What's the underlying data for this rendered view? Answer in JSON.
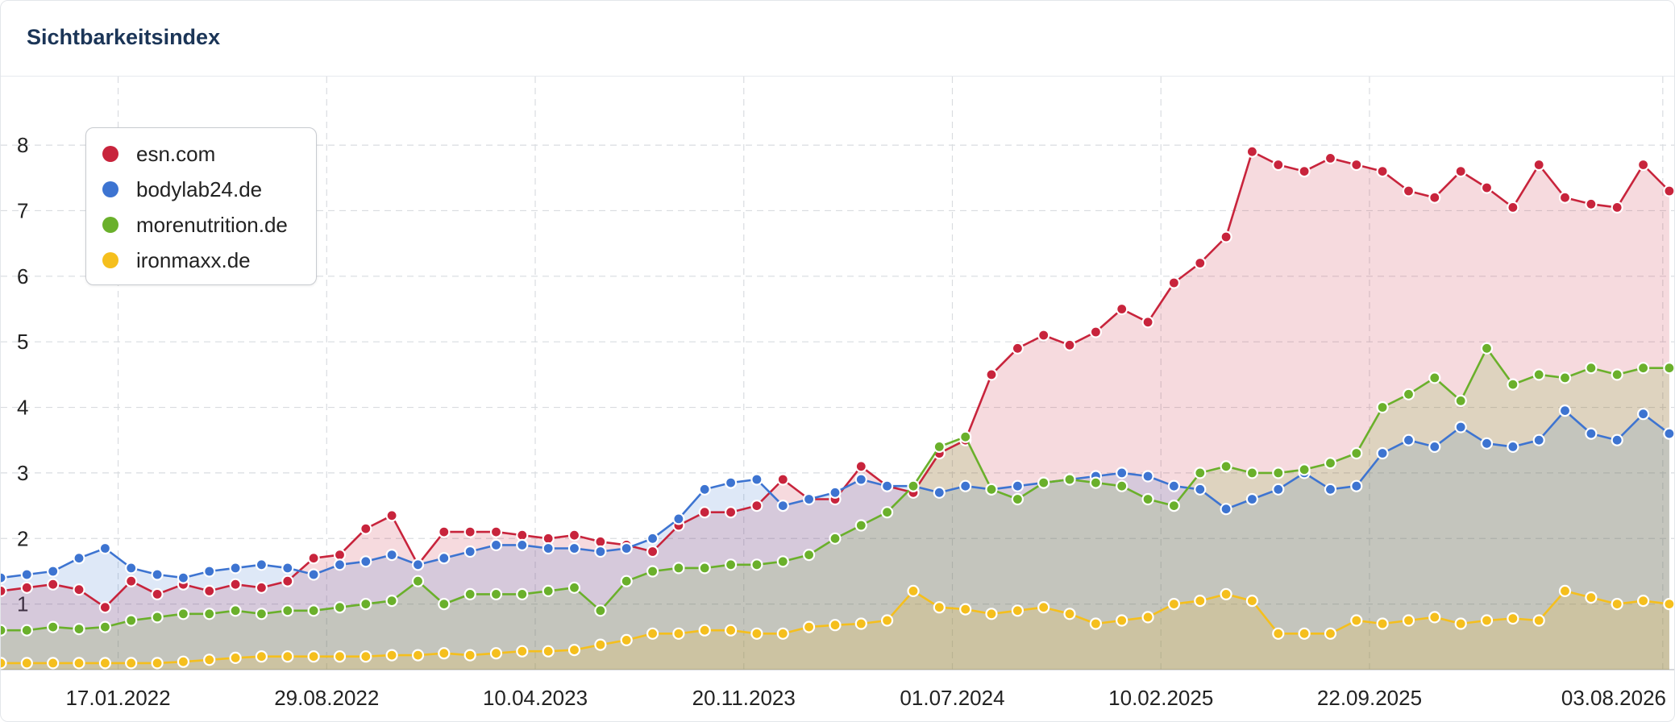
{
  "header": {
    "title": "Sichtbarkeitsindex"
  },
  "colors": {
    "esn": "#c8243c",
    "bodylab": "#3d74d1",
    "morenutrition": "#6ab02b",
    "ironmaxx": "#f5bf1d"
  },
  "chart_data": {
    "type": "area",
    "title": "Sichtbarkeitsindex",
    "xlabel": "",
    "ylabel": "",
    "x_tick_labels": [
      "17.01.2022",
      "29.08.2022",
      "10.04.2023",
      "20.11.2023",
      "01.07.2024",
      "10.02.2025",
      "22.09.2025",
      "03.08.2026"
    ],
    "x_range": [
      "2021-09-13",
      "2026-08-17"
    ],
    "y_ticks": [
      1,
      2,
      3,
      4,
      5,
      6,
      7,
      8
    ],
    "ylim": [
      0,
      8.8
    ],
    "grid": true,
    "legend_placement": "top-left",
    "x": [
      "2021-09-13",
      "2021-10-11",
      "2021-11-08",
      "2021-12-06",
      "2022-01-03",
      "2022-01-31",
      "2022-02-28",
      "2022-03-28",
      "2022-04-25",
      "2022-05-23",
      "2022-06-20",
      "2022-07-18",
      "2022-08-15",
      "2022-09-12",
      "2022-10-10",
      "2022-11-07",
      "2022-12-05",
      "2023-01-02",
      "2023-01-30",
      "2023-02-27",
      "2023-03-27",
      "2023-04-24",
      "2023-05-22",
      "2023-06-19",
      "2023-07-17",
      "2023-08-14",
      "2023-09-11",
      "2023-10-09",
      "2023-11-06",
      "2023-12-04",
      "2024-01-01",
      "2024-01-29",
      "2024-02-26",
      "2024-03-25",
      "2024-04-22",
      "2024-05-20",
      "2024-06-17",
      "2024-07-15",
      "2024-08-12",
      "2024-09-09",
      "2024-10-07",
      "2024-11-04",
      "2024-12-02",
      "2024-12-30",
      "2025-01-27",
      "2025-02-24",
      "2025-03-24",
      "2025-04-21",
      "2025-05-19",
      "2025-06-16",
      "2025-07-14",
      "2025-08-11",
      "2025-09-08",
      "2025-10-06",
      "2025-11-03",
      "2025-12-01",
      "2025-12-29",
      "2026-01-26",
      "2026-02-23",
      "2026-03-23",
      "2026-04-20",
      "2026-05-18",
      "2026-06-15",
      "2026-07-13",
      "2026-08-10"
    ],
    "series": [
      {
        "name": "esn.com",
        "color": "#c8243c",
        "values": [
          1.2,
          1.25,
          1.3,
          1.22,
          0.95,
          1.35,
          1.15,
          1.3,
          1.2,
          1.3,
          1.25,
          1.35,
          1.7,
          1.75,
          2.15,
          2.35,
          1.6,
          2.1,
          2.1,
          2.1,
          2.05,
          2.0,
          2.05,
          1.95,
          1.9,
          1.8,
          2.2,
          2.4,
          2.4,
          2.5,
          2.9,
          2.6,
          2.6,
          3.1,
          2.8,
          2.7,
          3.3,
          3.5,
          4.5,
          4.9,
          5.1,
          4.95,
          5.15,
          5.5,
          5.3,
          5.9,
          6.2,
          6.6,
          7.9,
          7.7,
          7.6,
          7.8,
          7.7,
          7.6,
          7.3,
          7.2,
          7.6,
          7.35,
          7.05,
          7.7,
          7.2,
          7.1,
          7.05,
          7.7,
          7.3
        ]
      },
      {
        "name": "bodylab24.de",
        "color": "#3d74d1",
        "values": [
          1.4,
          1.45,
          1.5,
          1.7,
          1.85,
          1.55,
          1.45,
          1.4,
          1.5,
          1.55,
          1.6,
          1.55,
          1.45,
          1.6,
          1.65,
          1.75,
          1.6,
          1.7,
          1.8,
          1.9,
          1.9,
          1.85,
          1.85,
          1.8,
          1.85,
          2.0,
          2.3,
          2.75,
          2.85,
          2.9,
          2.5,
          2.6,
          2.7,
          2.9,
          2.8,
          2.8,
          2.7,
          2.8,
          2.75,
          2.8,
          2.85,
          2.9,
          2.95,
          3.0,
          2.95,
          2.8,
          2.75,
          2.45,
          2.6,
          2.75,
          3.0,
          2.75,
          2.8,
          3.3,
          3.5,
          3.4,
          3.7,
          3.45,
          3.4,
          3.5,
          3.95,
          3.6,
          3.5,
          3.9,
          3.6
        ]
      },
      {
        "name": "morenutrition.de",
        "color": "#6ab02b",
        "values": [
          0.6,
          0.6,
          0.65,
          0.62,
          0.65,
          0.75,
          0.8,
          0.85,
          0.85,
          0.9,
          0.85,
          0.9,
          0.9,
          0.95,
          1.0,
          1.05,
          1.35,
          1.0,
          1.15,
          1.15,
          1.15,
          1.2,
          1.25,
          0.9,
          1.35,
          1.5,
          1.55,
          1.55,
          1.6,
          1.6,
          1.65,
          1.75,
          2.0,
          2.2,
          2.4,
          2.8,
          3.4,
          3.55,
          2.75,
          2.6,
          2.85,
          2.9,
          2.85,
          2.8,
          2.6,
          2.5,
          3.0,
          3.1,
          3.0,
          3.0,
          3.05,
          3.15,
          3.3,
          4.0,
          4.2,
          4.45,
          4.1,
          4.9,
          4.35,
          4.5,
          4.45,
          4.6,
          4.5,
          4.6,
          4.6
        ]
      },
      {
        "name": "ironmaxx.de",
        "color": "#f5bf1d",
        "values": [
          0.1,
          0.1,
          0.1,
          0.1,
          0.1,
          0.1,
          0.1,
          0.12,
          0.15,
          0.18,
          0.2,
          0.2,
          0.2,
          0.2,
          0.2,
          0.22,
          0.22,
          0.25,
          0.22,
          0.25,
          0.28,
          0.28,
          0.3,
          0.38,
          0.45,
          0.55,
          0.55,
          0.6,
          0.6,
          0.55,
          0.55,
          0.65,
          0.68,
          0.7,
          0.75,
          1.2,
          0.95,
          0.92,
          0.85,
          0.9,
          0.95,
          0.85,
          0.7,
          0.75,
          0.8,
          1.0,
          1.05,
          1.15,
          1.05,
          0.55,
          0.55,
          0.55,
          0.75,
          0.7,
          0.75,
          0.8,
          0.7,
          0.75,
          0.78,
          0.75,
          1.2,
          1.1,
          1.0,
          1.05,
          1.0
        ]
      }
    ]
  }
}
